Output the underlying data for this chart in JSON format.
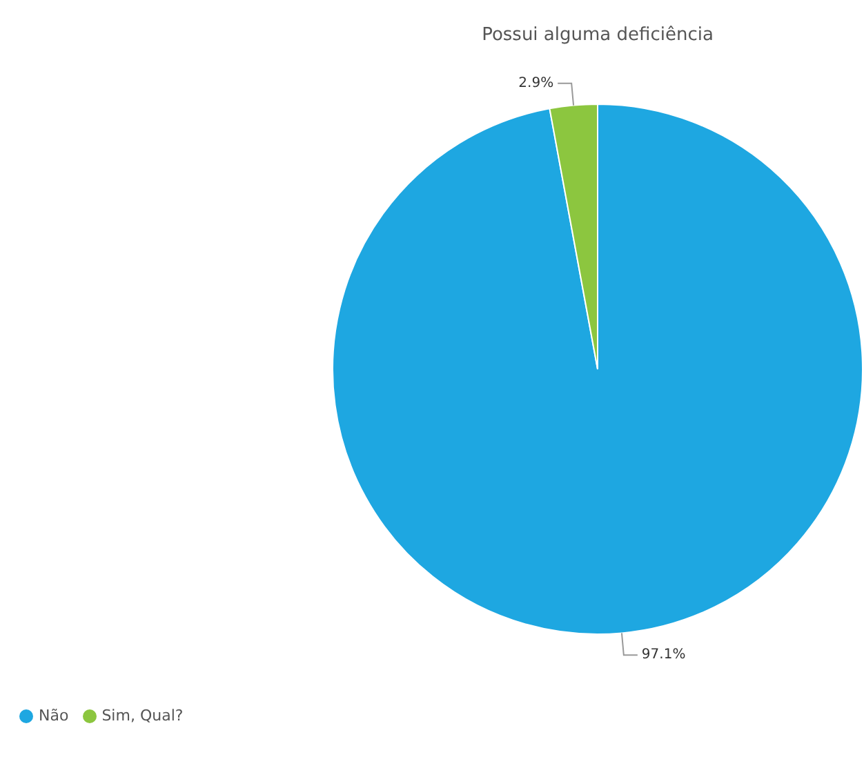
{
  "chart_data": {
    "type": "pie",
    "title": "Possui alguma deficiência",
    "categories": [
      "Não",
      "Sim, Qual?"
    ],
    "values": [
      97.1,
      2.9
    ],
    "colors": [
      "#1ea7e1",
      "#8cc63f"
    ],
    "value_labels": [
      "97.1%",
      "2.9%"
    ],
    "legend": "bottom left"
  }
}
